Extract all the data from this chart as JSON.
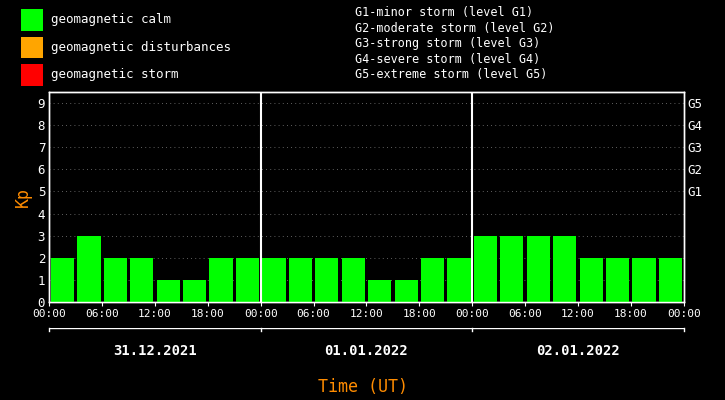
{
  "background_color": "#000000",
  "bar_color_calm": "#00ff00",
  "bar_color_disturb": "#ffa500",
  "bar_color_storm": "#ff0000",
  "text_color": "#ffffff",
  "ylabel_color": "#ff8c00",
  "xlabel_color": "#ff8c00",
  "ylabel": "Kp",
  "xlabel": "Time (UT)",
  "days": [
    "31.12.2021",
    "01.01.2022",
    "02.01.2022"
  ],
  "kp_day1": [
    2,
    3,
    2,
    2,
    1,
    1,
    2,
    2
  ],
  "kp_day2": [
    2,
    2,
    2,
    2,
    1,
    1,
    2,
    2
  ],
  "kp_day3": [
    3,
    3,
    3,
    3,
    2,
    2,
    2,
    2
  ],
  "ylim_max": 9.5,
  "yticks": [
    0,
    1,
    2,
    3,
    4,
    5,
    6,
    7,
    8,
    9
  ],
  "right_ytick_vals": [
    5,
    6,
    7,
    8,
    9
  ],
  "right_ytick_labels": [
    "G1",
    "G2",
    "G3",
    "G4",
    "G5"
  ],
  "legend_items": [
    {
      "label": "geomagnetic calm",
      "color": "#00ff00"
    },
    {
      "label": "geomagnetic disturbances",
      "color": "#ffa500"
    },
    {
      "label": "geomagnetic storm",
      "color": "#ff0000"
    }
  ],
  "storm_legend": [
    "G1-minor storm (level G1)",
    "G2-moderate storm (level G2)",
    "G3-strong storm (level G3)",
    "G4-severe storm (level G4)",
    "G5-extreme storm (level G5)"
  ],
  "xtick_hour_labels": [
    "00:00",
    "06:00",
    "12:00",
    "18:00"
  ],
  "grid_color": "#808080",
  "divider_color": "#ffffff",
  "spine_color": "#ffffff"
}
